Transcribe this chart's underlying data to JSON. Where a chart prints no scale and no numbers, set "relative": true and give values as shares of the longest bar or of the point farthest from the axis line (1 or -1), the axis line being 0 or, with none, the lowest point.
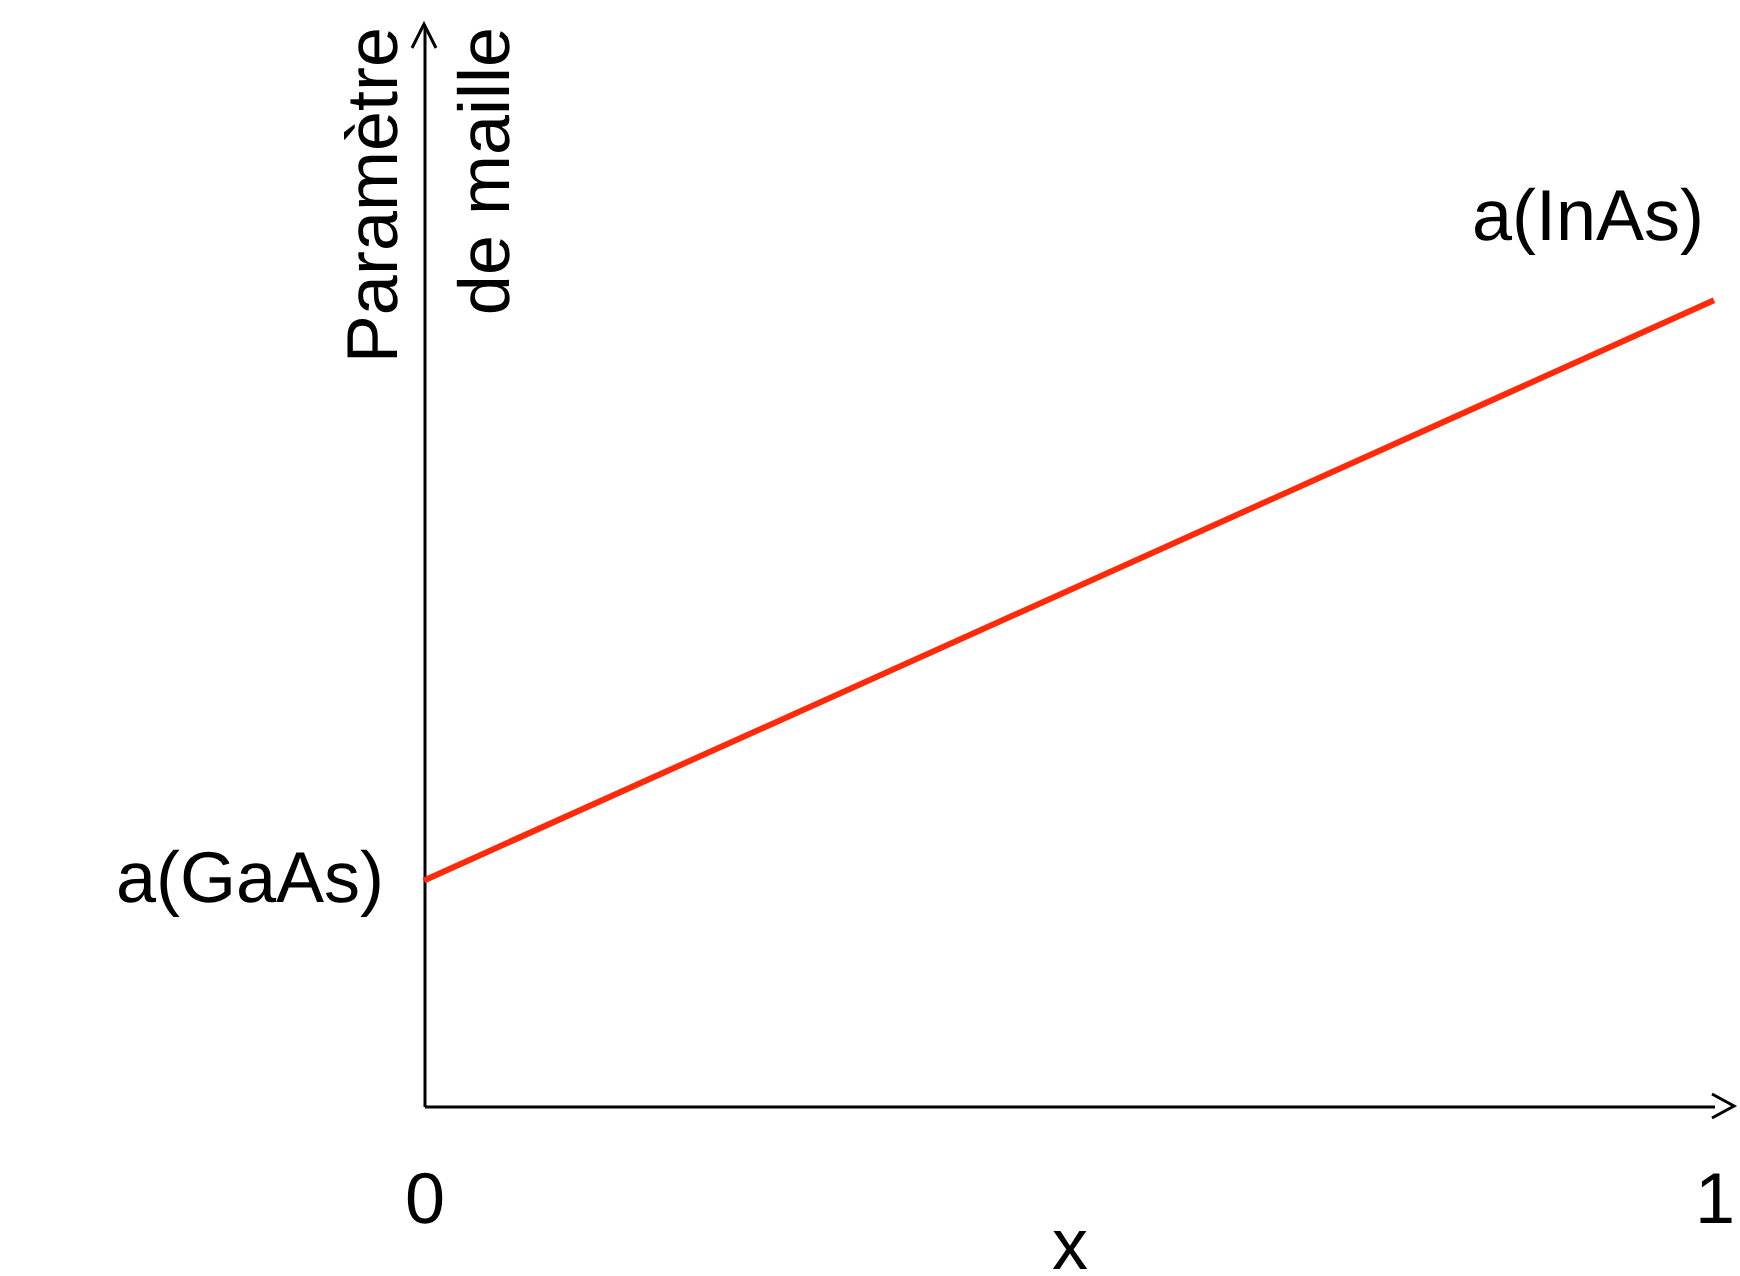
{
  "chart_data": {
    "type": "line",
    "xlabel": "x",
    "ylabel": "Paramètre de maille",
    "relative": true,
    "x": [
      0,
      1
    ],
    "series": [
      {
        "color": "#ff2a0a",
        "values": [
          0.28,
          1
        ]
      }
    ],
    "xlim": [
      0,
      1
    ],
    "xticks": [
      0,
      1
    ],
    "tick_labels": "x",
    "annotations": [
      {
        "text": "a(GaAs)",
        "x": 0,
        "y": 0.28
      },
      {
        "text": "a(InAs)",
        "x": 1,
        "y": 1
      }
    ]
  }
}
